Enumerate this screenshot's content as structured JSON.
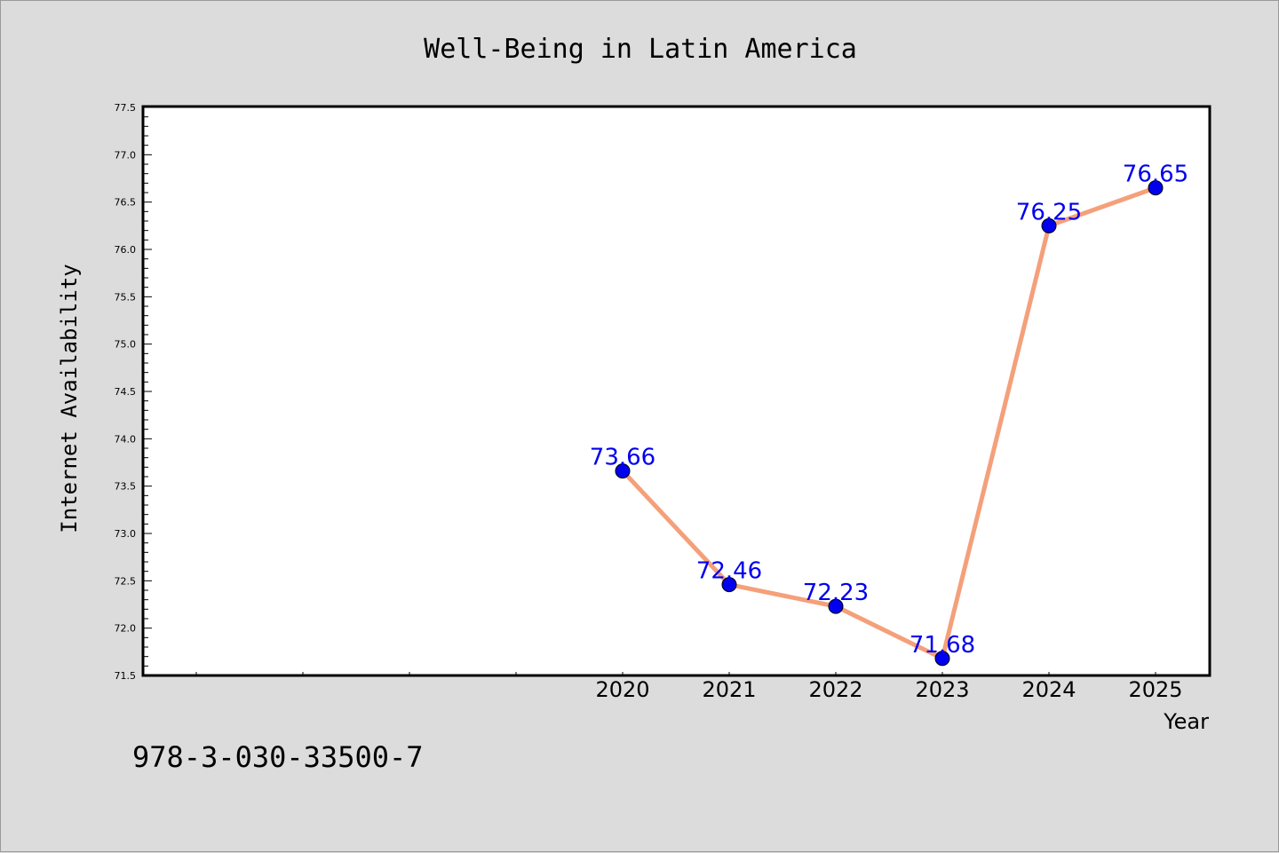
{
  "chart_data": {
    "type": "line",
    "title": "Well-Being in Latin America",
    "xlabel": "Year",
    "ylabel": "Internet Availability",
    "x": [
      "2020",
      "2021",
      "2022",
      "2023",
      "2024",
      "2025"
    ],
    "series": [
      {
        "values": [
          73.66,
          72.46,
          72.23,
          71.68,
          76.25,
          76.65
        ],
        "labels": [
          "73.66",
          "72.46",
          "72.23",
          "71.68",
          "76.25",
          "76.65"
        ],
        "line_color": "#f4a07a",
        "marker_color": "#0000ee",
        "label_color": "#0000ee"
      }
    ],
    "ylim": [
      71.5,
      77.5
    ],
    "yticks": [
      "71.5",
      "72.0",
      "72.5",
      "73.0",
      "73.5",
      "74.0",
      "74.5",
      "75.0",
      "75.5",
      "76.0",
      "76.5",
      "77.0",
      "77.5"
    ],
    "xlim": [
      2015.5,
      2025.5
    ],
    "grid": false
  },
  "annotation": {
    "isbn": "978-3-030-33500-7"
  },
  "colors": {
    "background": "#dcdcdc",
    "plot_area": "#ffffff",
    "axis": "#000000"
  }
}
